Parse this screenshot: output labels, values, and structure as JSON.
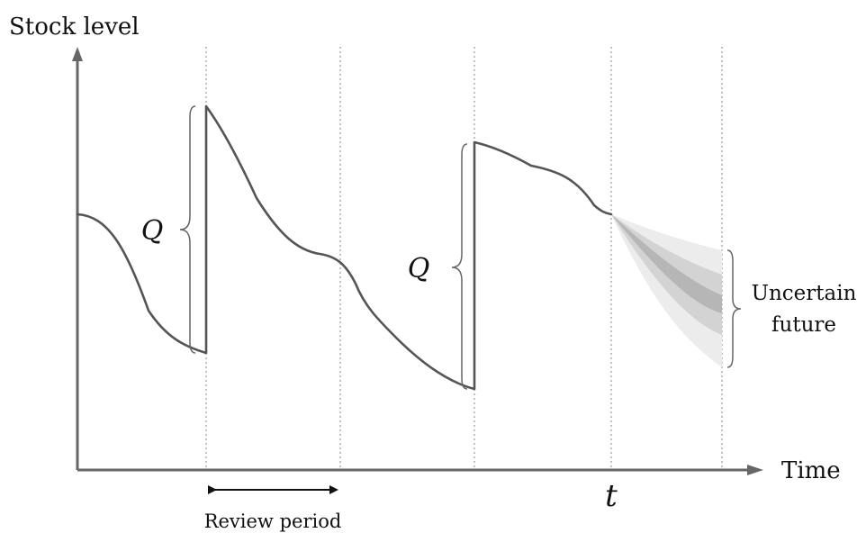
{
  "diagram": {
    "y_axis_label": "Stock level",
    "x_axis_label": "Time",
    "order_quantity_labels": [
      "Q",
      "Q"
    ],
    "current_time_label": "t",
    "review_period_label": "Review period",
    "uncertain_future_label": [
      "Uncertain",
      "future"
    ],
    "colors": {
      "axis": "#666666",
      "curve": "#555555",
      "band_outer": "#ececec",
      "band_middle": "#d3d3d3",
      "band_inner": "#b6b6b6"
    }
  }
}
